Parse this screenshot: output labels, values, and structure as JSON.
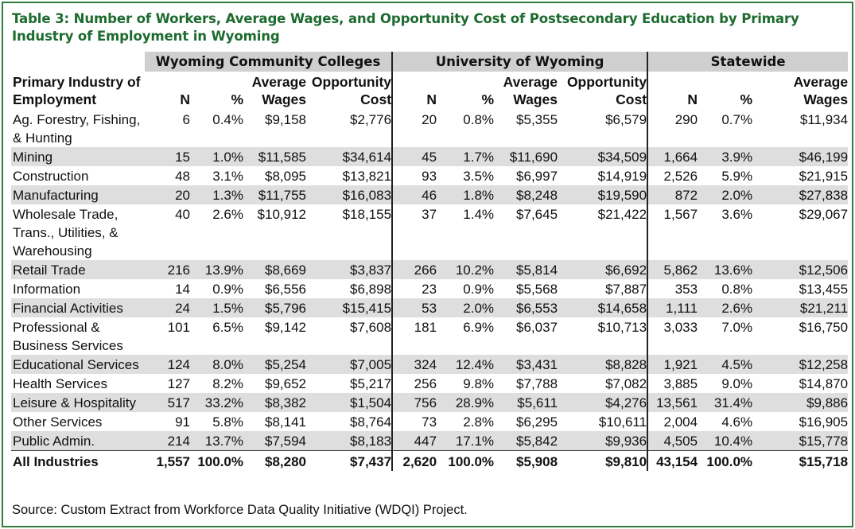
{
  "title": "Table 3: Number of Workers, Average Wages, and Opportunity Cost of Postsecondary Education by Primary Industry of Employment in Wyoming",
  "groups": {
    "community": "Wyoming Community Colleges",
    "university": "University of Wyoming",
    "statewide": "Statewide"
  },
  "headers": {
    "industry": "Primary Industry of Employment",
    "n": "N",
    "pct": "%",
    "avg_wages": "Average Wages",
    "opp_cost": "Opportunity Cost"
  },
  "rows": [
    {
      "industry": "Ag. Forestry, Fishing, & Hunting",
      "cc": [
        "6",
        "0.4%",
        "$9,158",
        "$2,776"
      ],
      "uw": [
        "20",
        "0.8%",
        "$5,355",
        "$6,579"
      ],
      "sw": [
        "290",
        "0.7%",
        "$11,934"
      ]
    },
    {
      "industry": "Mining",
      "cc": [
        "15",
        "1.0%",
        "$11,585",
        "$34,614"
      ],
      "uw": [
        "45",
        "1.7%",
        "$11,690",
        "$34,509"
      ],
      "sw": [
        "1,664",
        "3.9%",
        "$46,199"
      ]
    },
    {
      "industry": "Construction",
      "cc": [
        "48",
        "3.1%",
        "$8,095",
        "$13,821"
      ],
      "uw": [
        "93",
        "3.5%",
        "$6,997",
        "$14,919"
      ],
      "sw": [
        "2,526",
        "5.9%",
        "$21,915"
      ]
    },
    {
      "industry": "Manufacturing",
      "cc": [
        "20",
        "1.3%",
        "$11,755",
        "$16,083"
      ],
      "uw": [
        "46",
        "1.8%",
        "$8,248",
        "$19,590"
      ],
      "sw": [
        "872",
        "2.0%",
        "$27,838"
      ]
    },
    {
      "industry": "Wholesale Trade, Trans., Utilities, & Warehousing",
      "cc": [
        "40",
        "2.6%",
        "$10,912",
        "$18,155"
      ],
      "uw": [
        "37",
        "1.4%",
        "$7,645",
        "$21,422"
      ],
      "sw": [
        "1,567",
        "3.6%",
        "$29,067"
      ]
    },
    {
      "industry": "Retail Trade",
      "cc": [
        "216",
        "13.9%",
        "$8,669",
        "$3,837"
      ],
      "uw": [
        "266",
        "10.2%",
        "$5,814",
        "$6,692"
      ],
      "sw": [
        "5,862",
        "13.6%",
        "$12,506"
      ]
    },
    {
      "industry": "Information",
      "cc": [
        "14",
        "0.9%",
        "$6,556",
        "$6,898"
      ],
      "uw": [
        "23",
        "0.9%",
        "$5,568",
        "$7,887"
      ],
      "sw": [
        "353",
        "0.8%",
        "$13,455"
      ]
    },
    {
      "industry": "Financial Activities",
      "cc": [
        "24",
        "1.5%",
        "$5,796",
        "$15,415"
      ],
      "uw": [
        "53",
        "2.0%",
        "$6,553",
        "$14,658"
      ],
      "sw": [
        "1,111",
        "2.6%",
        "$21,211"
      ]
    },
    {
      "industry": "Professional & Business Services",
      "cc": [
        "101",
        "6.5%",
        "$9,142",
        "$7,608"
      ],
      "uw": [
        "181",
        "6.9%",
        "$6,037",
        "$10,713"
      ],
      "sw": [
        "3,033",
        "7.0%",
        "$16,750"
      ]
    },
    {
      "industry": "Educational Services",
      "cc": [
        "124",
        "8.0%",
        "$5,254",
        "$7,005"
      ],
      "uw": [
        "324",
        "12.4%",
        "$3,431",
        "$8,828"
      ],
      "sw": [
        "1,921",
        "4.5%",
        "$12,258"
      ]
    },
    {
      "industry": "Health Services",
      "cc": [
        "127",
        "8.2%",
        "$9,652",
        "$5,217"
      ],
      "uw": [
        "256",
        "9.8%",
        "$7,788",
        "$7,082"
      ],
      "sw": [
        "3,885",
        "9.0%",
        "$14,870"
      ]
    },
    {
      "industry": "Leisure & Hospitality",
      "cc": [
        "517",
        "33.2%",
        "$8,382",
        "$1,504"
      ],
      "uw": [
        "756",
        "28.9%",
        "$5,611",
        "$4,276"
      ],
      "sw": [
        "13,561",
        "31.4%",
        "$9,886"
      ]
    },
    {
      "industry": "Other Services",
      "cc": [
        "91",
        "5.8%",
        "$8,141",
        "$8,764"
      ],
      "uw": [
        "73",
        "2.8%",
        "$6,295",
        "$10,611"
      ],
      "sw": [
        "2,004",
        "4.6%",
        "$16,905"
      ]
    },
    {
      "industry": "Public Admin.",
      "cc": [
        "214",
        "13.7%",
        "$7,594",
        "$8,183"
      ],
      "uw": [
        "447",
        "17.1%",
        "$5,842",
        "$9,936"
      ],
      "sw": [
        "4,505",
        "10.4%",
        "$15,778"
      ]
    }
  ],
  "total": {
    "industry": "All Industries",
    "cc": [
      "1,557",
      "100.0%",
      "$8,280",
      "$7,437"
    ],
    "uw": [
      "2,620",
      "100.0%",
      "$5,908",
      "$9,810"
    ],
    "sw": [
      "43,154",
      "100.0%",
      "$15,718"
    ]
  },
  "source": "Source: Custom Extract from Workforce Data Quality Initiative (WDQI) Project.",
  "colors": {
    "title_green": "#1d6b2e",
    "border_green": "#2f7a3e",
    "row_shade": "#dedede",
    "group_header": "#cfcfcf"
  }
}
